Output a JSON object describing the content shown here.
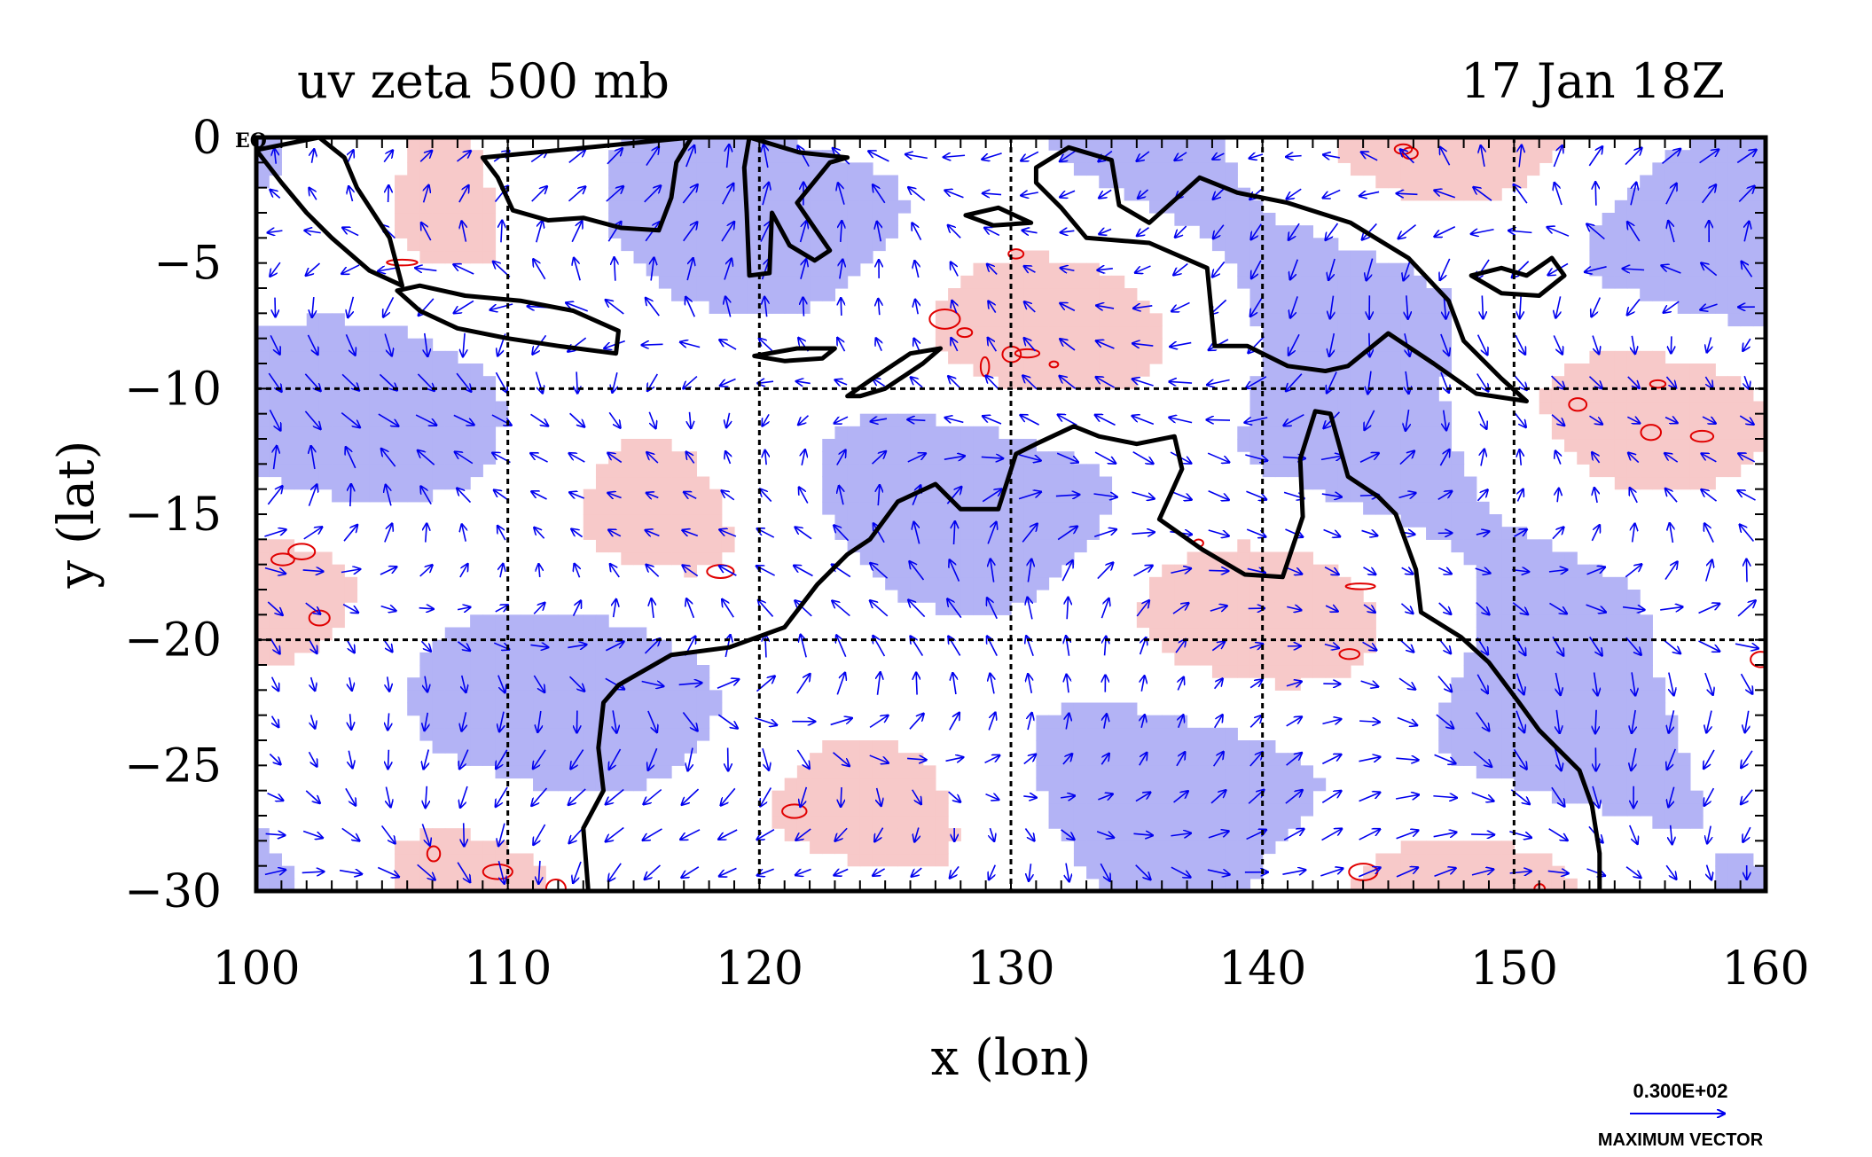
{
  "chart_data": {
    "type": "vector field with vorticity contours",
    "title_left": "uv zeta 500 mb",
    "title_right": "17 Jan 18Z",
    "xlabel": "x (lon)",
    "ylabel": "y (lat)",
    "xlim": [
      100,
      160
    ],
    "ylim": [
      -30,
      0
    ],
    "x_ticks": [
      "100",
      "110",
      "120",
      "130",
      "140",
      "150",
      "160"
    ],
    "y_ticks": [
      "0",
      "−5",
      "−10",
      "−15",
      "−20",
      "−25",
      "−30"
    ],
    "x_tick_values": [
      100,
      110,
      120,
      130,
      140,
      150,
      160
    ],
    "y_tick_values": [
      0,
      -5,
      -10,
      -15,
      -20,
      -25,
      -30
    ],
    "corner_label": "EQ",
    "grid": true,
    "grid_x": [
      110,
      120,
      130,
      140,
      150
    ],
    "grid_y": [
      -10,
      -20
    ],
    "legend": {
      "max_vector_value": "0.300E+02",
      "max_vector_label": "MAXIMUM VECTOR",
      "placement": "bottom-right"
    },
    "colors": {
      "positive_fill": "#f7c9c9",
      "positive_contour": "#e00000",
      "negative_fill": "#b3b3f5",
      "vectors": "#0000ee",
      "coastline": "#000000"
    },
    "coastlines": [
      {
        "name": "sumatra",
        "points": [
          [
            100,
            -0.5
          ],
          [
            101,
            -1.8
          ],
          [
            102,
            -3
          ],
          [
            103,
            -4
          ],
          [
            104.5,
            -5.3
          ],
          [
            105.8,
            -5.9
          ],
          [
            105.3,
            -4
          ],
          [
            104,
            -2
          ],
          [
            103.5,
            -0.8
          ],
          [
            102.5,
            0
          ]
        ]
      },
      {
        "name": "java",
        "points": [
          [
            105.6,
            -6.1
          ],
          [
            106.5,
            -6.9
          ],
          [
            108,
            -7.6
          ],
          [
            110,
            -8
          ],
          [
            112,
            -8.3
          ],
          [
            114.3,
            -8.6
          ],
          [
            114.4,
            -7.7
          ],
          [
            112.6,
            -6.9
          ],
          [
            110.5,
            -6.5
          ],
          [
            108.3,
            -6.3
          ],
          [
            106.5,
            -5.9
          ]
        ]
      },
      {
        "name": "borneo",
        "points": [
          [
            109,
            -0.8
          ],
          [
            109.6,
            -1.6
          ],
          [
            110.2,
            -2.9
          ],
          [
            111.6,
            -3.3
          ],
          [
            113,
            -3.2
          ],
          [
            114.5,
            -3.6
          ],
          [
            116,
            -3.7
          ],
          [
            116.5,
            -2.4
          ],
          [
            116.7,
            -1
          ],
          [
            117.3,
            0
          ]
        ]
      },
      {
        "name": "sulawesi",
        "points": [
          [
            119.6,
            0
          ],
          [
            119.4,
            -1.2
          ],
          [
            119.5,
            -3
          ],
          [
            119.6,
            -5.5
          ],
          [
            120.4,
            -5.4
          ],
          [
            120.5,
            -3
          ],
          [
            121.2,
            -4.3
          ],
          [
            122.2,
            -4.9
          ],
          [
            122.8,
            -4.5
          ],
          [
            121.5,
            -2.6
          ],
          [
            122.8,
            -1
          ],
          [
            123.5,
            -0.8
          ],
          [
            121.6,
            -0.6
          ]
        ]
      },
      {
        "name": "seram",
        "points": [
          [
            128.2,
            -3.1
          ],
          [
            129.5,
            -2.8
          ],
          [
            130.8,
            -3.4
          ],
          [
            129.3,
            -3.5
          ]
        ]
      },
      {
        "name": "timor",
        "points": [
          [
            123.5,
            -10.3
          ],
          [
            124.5,
            -9.6
          ],
          [
            126,
            -8.6
          ],
          [
            127.2,
            -8.4
          ],
          [
            126.5,
            -9
          ],
          [
            125,
            -10
          ],
          [
            124,
            -10.3
          ]
        ]
      },
      {
        "name": "flores",
        "points": [
          [
            119.8,
            -8.7
          ],
          [
            121.5,
            -8.4
          ],
          [
            123,
            -8.4
          ],
          [
            122.5,
            -8.8
          ],
          [
            121,
            -8.9
          ]
        ]
      },
      {
        "name": "new_guinea",
        "points": [
          [
            131,
            -1.2
          ],
          [
            132.3,
            -0.4
          ],
          [
            134,
            -0.9
          ],
          [
            134.3,
            -2.7
          ],
          [
            135.5,
            -3.4
          ],
          [
            137.5,
            -1.6
          ],
          [
            139,
            -2.2
          ],
          [
            141,
            -2.6
          ],
          [
            143.5,
            -3.4
          ],
          [
            145.8,
            -4.8
          ],
          [
            147.4,
            -6.5
          ],
          [
            148,
            -8.1
          ],
          [
            149.5,
            -9.6
          ],
          [
            150.5,
            -10.5
          ],
          [
            148.5,
            -10.2
          ],
          [
            146.8,
            -9
          ],
          [
            145,
            -7.8
          ],
          [
            143.4,
            -9.1
          ],
          [
            142.5,
            -9.3
          ],
          [
            141,
            -9.1
          ],
          [
            139.4,
            -8.3
          ],
          [
            138.1,
            -8.3
          ],
          [
            137.8,
            -5.2
          ],
          [
            135.5,
            -4.2
          ],
          [
            133,
            -4
          ],
          [
            132,
            -2.8
          ],
          [
            131,
            -1.8
          ]
        ]
      },
      {
        "name": "new_britain",
        "points": [
          [
            148.3,
            -5.5
          ],
          [
            149.5,
            -5.2
          ],
          [
            150.5,
            -5.5
          ],
          [
            151.5,
            -4.8
          ],
          [
            152,
            -5.5
          ],
          [
            151,
            -6.3
          ],
          [
            149.5,
            -6.2
          ]
        ]
      },
      {
        "name": "australia",
        "points": [
          [
            113.2,
            -30
          ],
          [
            113,
            -27.5
          ],
          [
            113.8,
            -26
          ],
          [
            113.6,
            -24.3
          ],
          [
            113.8,
            -22.5
          ],
          [
            114.4,
            -21.8
          ],
          [
            116.5,
            -20.6
          ],
          [
            118.8,
            -20.3
          ],
          [
            121,
            -19.5
          ],
          [
            122.3,
            -17.8
          ],
          [
            123.5,
            -16.6
          ],
          [
            124.4,
            -16
          ],
          [
            125.5,
            -14.5
          ],
          [
            127,
            -13.8
          ],
          [
            128,
            -14.8
          ],
          [
            129.5,
            -14.8
          ],
          [
            130.2,
            -12.6
          ],
          [
            131,
            -12.2
          ],
          [
            132.5,
            -11.5
          ],
          [
            133.5,
            -11.9
          ],
          [
            135,
            -12.2
          ],
          [
            136.5,
            -11.9
          ],
          [
            136.8,
            -13.2
          ],
          [
            135.9,
            -15.2
          ],
          [
            137.6,
            -16.4
          ],
          [
            139.3,
            -17.4
          ],
          [
            140.8,
            -17.5
          ],
          [
            141.6,
            -15.1
          ],
          [
            141.5,
            -12.8
          ],
          [
            142.1,
            -10.9
          ],
          [
            142.7,
            -11
          ],
          [
            143.4,
            -13.5
          ],
          [
            144.6,
            -14.3
          ],
          [
            145.3,
            -15
          ],
          [
            146.1,
            -17.2
          ],
          [
            146.3,
            -18.9
          ],
          [
            147.9,
            -19.9
          ],
          [
            149,
            -20.9
          ],
          [
            150.2,
            -22.5
          ],
          [
            151,
            -23.6
          ],
          [
            152.6,
            -25.2
          ],
          [
            153.1,
            -26.6
          ],
          [
            153.4,
            -28.5
          ],
          [
            153.4,
            -30
          ]
        ]
      }
    ]
  }
}
